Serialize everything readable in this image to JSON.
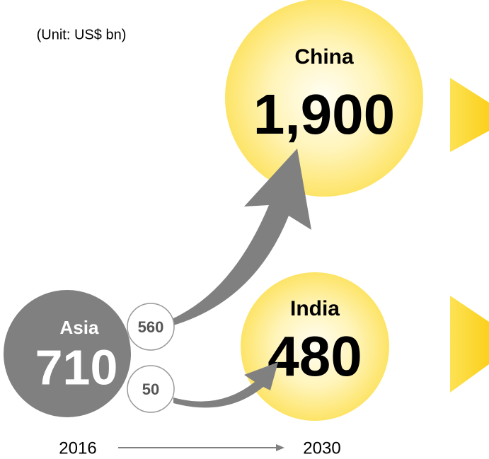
{
  "unit": "(Unit: US$ bn)",
  "nodes": [
    {
      "label": "China",
      "value": "1,900"
    },
    {
      "label": "India",
      "value": "480"
    },
    {
      "label": "Asia",
      "value": "710"
    }
  ],
  "flows": [
    {
      "value": "560"
    },
    {
      "value": "50"
    }
  ],
  "timeline": {
    "start": "2016",
    "end": "2030"
  }
}
